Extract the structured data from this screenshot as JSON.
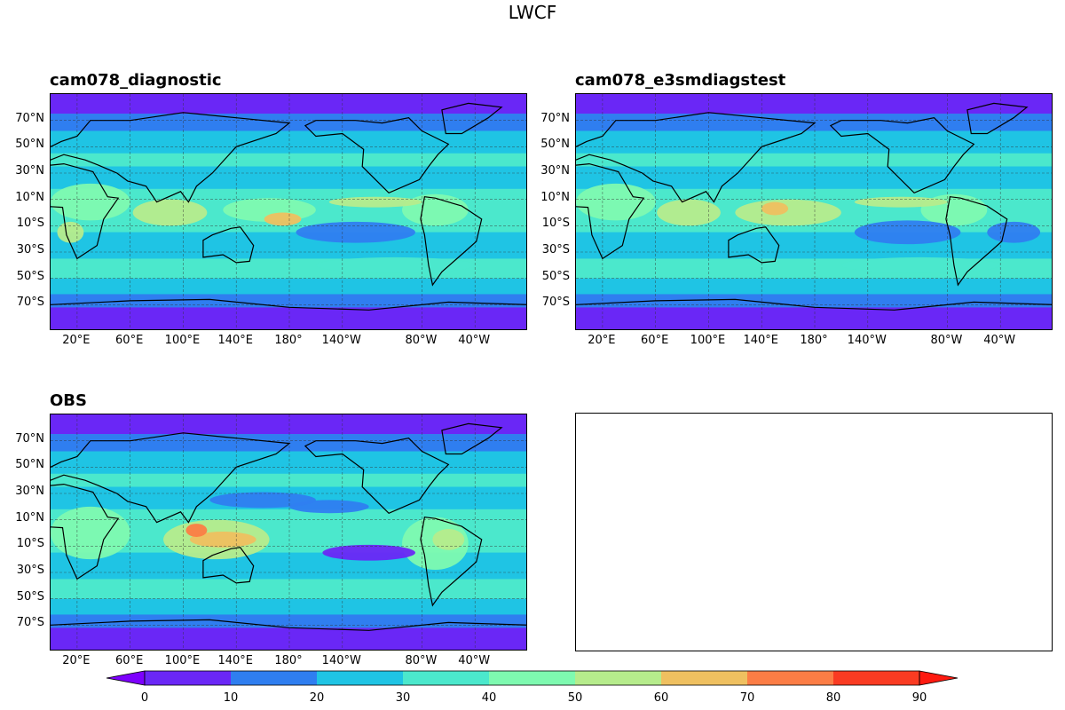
{
  "figure": {
    "title": "LWCF"
  },
  "chart_data": {
    "type": "heatmap",
    "title": "LWCF",
    "panels": [
      {
        "id": "test",
        "title": "cam078_diagnostic"
      },
      {
        "id": "test2",
        "title": "cam078_e3smdiagstest"
      },
      {
        "id": "obs",
        "title": "OBS"
      }
    ],
    "lat_ticks": [
      "70°N",
      "50°N",
      "30°N",
      "10°N",
      "10°S",
      "30°S",
      "50°S",
      "70°S"
    ],
    "lat_values": [
      70,
      50,
      30,
      10,
      -10,
      -30,
      -50,
      -70
    ],
    "lon_ticks": [
      "20°E",
      "60°E",
      "100°E",
      "140°E",
      "180°",
      "140°W",
      "80°W",
      "40°W"
    ],
    "lon_values": [
      20,
      60,
      100,
      140,
      180,
      220,
      280,
      320
    ],
    "lon_range": [
      0,
      360
    ],
    "lat_range": [
      -90,
      90
    ],
    "colorbar": {
      "levels": [
        0,
        10,
        20,
        30,
        40,
        50,
        60,
        70,
        80,
        90
      ],
      "labels": [
        "0",
        "10",
        "20",
        "30",
        "40",
        "50",
        "60",
        "70",
        "80",
        "90"
      ],
      "colors": [
        "#6a27f6",
        "#2f7ef0",
        "#1fc4e4",
        "#4be8cc",
        "#7efab0",
        "#b6ec8c",
        "#efc060",
        "#fc7d45",
        "#fa3b22"
      ],
      "under_color": "#7d00fd",
      "over_color": "#fe1a10",
      "extend": "both"
    }
  }
}
